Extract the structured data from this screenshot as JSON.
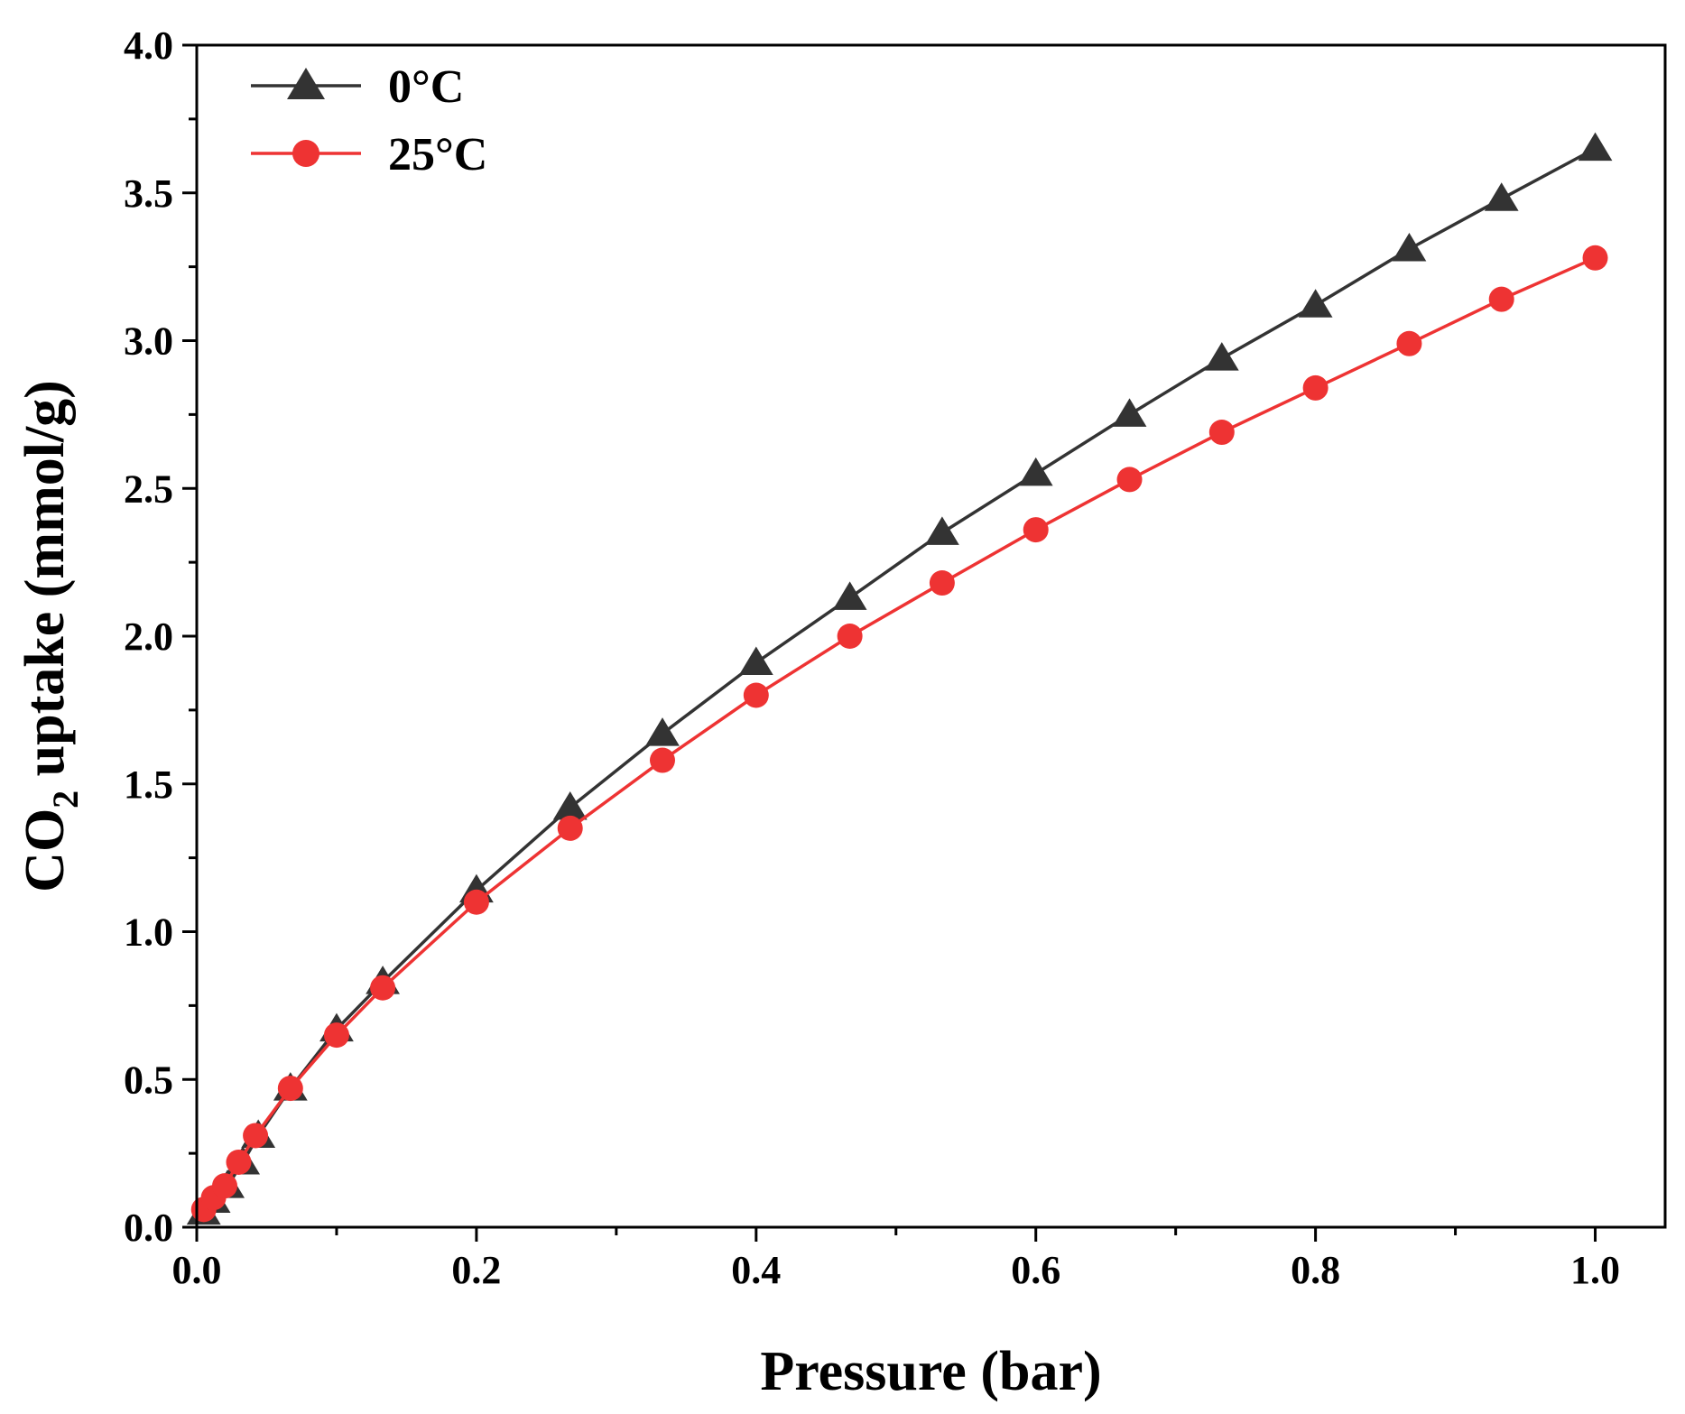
{
  "chart_data": {
    "type": "line",
    "xlabel": "Pressure (bar)",
    "ylabel": {
      "prefix": "CO",
      "subscript": "2",
      "suffix": " uptake (mmol/g)"
    },
    "xlim": [
      0.0,
      1.05
    ],
    "ylim": [
      0.0,
      4.0
    ],
    "xticks": [
      0.0,
      0.2,
      0.4,
      0.6,
      0.8,
      1.0
    ],
    "xtick_labels": [
      "0.0",
      "0.2",
      "0.4",
      "0.6",
      "0.8",
      "1.0"
    ],
    "xminor": [
      0.1,
      0.3,
      0.5,
      0.7,
      0.9
    ],
    "yticks": [
      0.0,
      0.5,
      1.0,
      1.5,
      2.0,
      2.5,
      3.0,
      3.5,
      4.0
    ],
    "ytick_labels": [
      "0.0",
      "0.5",
      "1.0",
      "1.5",
      "2.0",
      "2.5",
      "3.0",
      "3.5",
      "4.0"
    ],
    "yminor": [
      0.25,
      0.75,
      1.25,
      1.75,
      2.25,
      2.75,
      3.25,
      3.75
    ],
    "grid": false,
    "legend_position": "top-left",
    "series": [
      {
        "name": "0°C",
        "color": "#333333",
        "marker": "triangle",
        "x": [
          0.005,
          0.012,
          0.022,
          0.033,
          0.044,
          0.067,
          0.1,
          0.133,
          0.2,
          0.267,
          0.333,
          0.4,
          0.467,
          0.533,
          0.6,
          0.667,
          0.733,
          0.8,
          0.867,
          0.933,
          1.0
        ],
        "y": [
          0.05,
          0.09,
          0.14,
          0.22,
          0.31,
          0.47,
          0.67,
          0.83,
          1.14,
          1.42,
          1.67,
          1.91,
          2.13,
          2.35,
          2.55,
          2.75,
          2.94,
          3.12,
          3.31,
          3.48,
          3.65
        ]
      },
      {
        "name": "25°C",
        "color": "#ee3333",
        "marker": "circle",
        "x": [
          0.005,
          0.012,
          0.02,
          0.03,
          0.042,
          0.067,
          0.1,
          0.133,
          0.2,
          0.267,
          0.333,
          0.4,
          0.467,
          0.533,
          0.6,
          0.667,
          0.733,
          0.8,
          0.867,
          0.933,
          1.0
        ],
        "y": [
          0.06,
          0.1,
          0.14,
          0.22,
          0.31,
          0.47,
          0.65,
          0.81,
          1.1,
          1.35,
          1.58,
          1.8,
          2.0,
          2.18,
          2.36,
          2.53,
          2.69,
          2.84,
          2.99,
          3.14,
          3.28
        ]
      }
    ]
  }
}
